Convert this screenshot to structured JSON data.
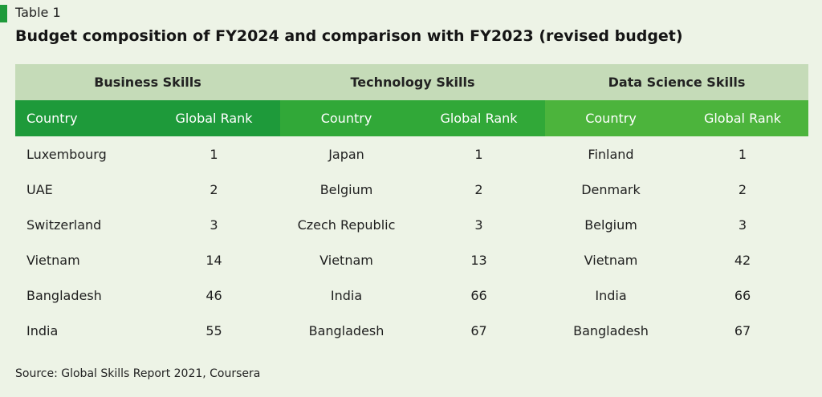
{
  "header": {
    "label": "Table 1",
    "title": "Budget composition of FY2024 and comparison with FY2023 (revised budget)"
  },
  "table": {
    "groups": [
      "Business Skills",
      "Technology Skills",
      "Data Science Skills"
    ],
    "columns": [
      "Country",
      "Global Rank",
      "Country",
      "Global Rank",
      "Country",
      "Global Rank"
    ],
    "rows": [
      [
        "Luxembourg",
        "1",
        "Japan",
        "1",
        "Finland",
        "1"
      ],
      [
        "UAE",
        "2",
        "Belgium",
        "2",
        "Denmark",
        "2"
      ],
      [
        "Switzerland",
        "3",
        "Czech Republic",
        "3",
        "Belgium",
        "3"
      ],
      [
        "Vietnam",
        "14",
        "Vietnam",
        "13",
        "Vietnam",
        "42"
      ],
      [
        "Bangladesh",
        "46",
        "India",
        "66",
        "India",
        "66"
      ],
      [
        "India",
        "55",
        "Bangladesh",
        "67",
        "Bangladesh",
        "67"
      ]
    ]
  },
  "footer": {
    "source": "Source: Global Skills Report 2021, Coursera"
  },
  "colors": {
    "background": "#edf3e6",
    "group_header": "#c5dbb8",
    "business": "#1e9a3a",
    "technology": "#31a838",
    "data_science": "#4cb43c"
  }
}
